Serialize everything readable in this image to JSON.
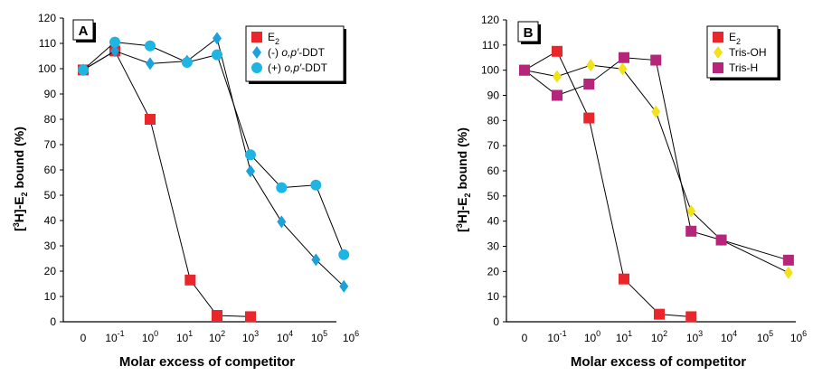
{
  "chart_data": [
    {
      "type": "line",
      "panel_label": "A",
      "categories": [
        "0",
        "10^-1",
        "10^0",
        "10^1",
        "10^2",
        "10^3",
        "10^4",
        "10^5",
        "10^6"
      ],
      "tick_labels": [
        {
          "base": "0",
          "exp": ""
        },
        {
          "base": "10",
          "exp": "-1"
        },
        {
          "base": "10",
          "exp": "0"
        },
        {
          "base": "10",
          "exp": "1"
        },
        {
          "base": "10",
          "exp": "2"
        },
        {
          "base": "10",
          "exp": "3"
        },
        {
          "base": "10",
          "exp": "4"
        },
        {
          "base": "10",
          "exp": "5"
        },
        {
          "base": "10",
          "exp": "6"
        }
      ],
      "xlabel": "Molar excess of competitor",
      "ylabel": "[3H]-E2 bound (%)",
      "ylim": [
        0,
        120
      ],
      "yticks": [
        0,
        10,
        20,
        30,
        40,
        50,
        60,
        70,
        80,
        90,
        100,
        110,
        120
      ],
      "grid": false,
      "legend_position": "top-right",
      "series": [
        {
          "name": "E2",
          "legend_base": "E",
          "legend_sub": "2",
          "legend_italic": "",
          "legend_tail": "",
          "marker": "square",
          "color": "#e8262b",
          "points": [
            [
              0,
              99.5
            ],
            [
              0.1,
              107
            ],
            [
              1,
              80
            ],
            [
              15,
              16.5
            ],
            [
              100,
              2.5
            ],
            [
              1000,
              2
            ]
          ]
        },
        {
          "name": "(-) o,p′-DDT",
          "legend_base": "(-) ",
          "legend_sub": "",
          "legend_italic": "o,p′",
          "legend_tail": "-DDT",
          "marker": "diamond",
          "color": "#1ba2dc",
          "points": [
            [
              0,
              99.5
            ],
            [
              0.1,
              107
            ],
            [
              1,
              102
            ],
            [
              12,
              103
            ],
            [
              100,
              112
            ],
            [
              1000,
              59.5
            ],
            [
              8000,
              39.5
            ],
            [
              80000,
              24.5
            ],
            [
              600000,
              14
            ]
          ]
        },
        {
          "name": "(+) o,p′-DDT",
          "legend_base": "(+) ",
          "legend_sub": "",
          "legend_italic": "o,p′",
          "legend_tail": "-DDT",
          "marker": "circle",
          "color": "#1fb5e3",
          "points": [
            [
              0,
              99.5
            ],
            [
              0.1,
              110.5
            ],
            [
              1,
              109
            ],
            [
              12,
              102.5
            ],
            [
              100,
              105.5
            ],
            [
              1000,
              66
            ],
            [
              8000,
              53
            ],
            [
              80000,
              54
            ],
            [
              600000,
              26.5
            ]
          ]
        }
      ]
    },
    {
      "type": "line",
      "panel_label": "B",
      "categories": [
        "0",
        "10^-1",
        "10^0",
        "10^1",
        "10^2",
        "10^3",
        "10^4",
        "10^5",
        "10^6"
      ],
      "tick_labels": [
        {
          "base": "0",
          "exp": ""
        },
        {
          "base": "10",
          "exp": "-1"
        },
        {
          "base": "10",
          "exp": "0"
        },
        {
          "base": "10",
          "exp": "1"
        },
        {
          "base": "10",
          "exp": "2"
        },
        {
          "base": "10",
          "exp": "3"
        },
        {
          "base": "10",
          "exp": "4"
        },
        {
          "base": "10",
          "exp": "5"
        },
        {
          "base": "10",
          "exp": "6"
        }
      ],
      "xlabel": "Molar excess of competitor",
      "ylabel": "[3H]-E2 bound (%)",
      "ylim": [
        0,
        120
      ],
      "yticks": [
        0,
        10,
        20,
        30,
        40,
        50,
        60,
        70,
        80,
        90,
        100,
        110,
        120
      ],
      "grid": false,
      "legend_position": "top-right",
      "series": [
        {
          "name": "E2",
          "legend_base": "E",
          "legend_sub": "2",
          "legend_italic": "",
          "legend_tail": "",
          "marker": "square",
          "color": "#e8262b",
          "points": [
            [
              0,
              100
            ],
            [
              0.1,
              107.5
            ],
            [
              0.8,
              81
            ],
            [
              10,
              17
            ],
            [
              100,
              3
            ],
            [
              800,
              2
            ]
          ]
        },
        {
          "name": "Tris-OH",
          "legend_base": "Tris-OH",
          "legend_sub": "",
          "legend_italic": "",
          "legend_tail": "",
          "marker": "diamond",
          "color": "#f2e21a",
          "points": [
            [
              0,
              100
            ],
            [
              0.1,
              97.5
            ],
            [
              0.9,
              102
            ],
            [
              9,
              100.5
            ],
            [
              80,
              83.5
            ],
            [
              800,
              44
            ],
            [
              6000,
              32.5
            ],
            [
              500000,
              19.5
            ]
          ]
        },
        {
          "name": "Tris-H",
          "legend_base": "Tris-H",
          "legend_sub": "",
          "legend_italic": "",
          "legend_tail": "",
          "marker": "square",
          "color": "#b5267a",
          "points": [
            [
              0,
              100
            ],
            [
              0.1,
              90
            ],
            [
              0.8,
              94.5
            ],
            [
              10,
              105
            ],
            [
              80,
              104
            ],
            [
              800,
              36
            ],
            [
              6000,
              32.5
            ],
            [
              500000,
              24.5
            ]
          ]
        }
      ]
    }
  ]
}
